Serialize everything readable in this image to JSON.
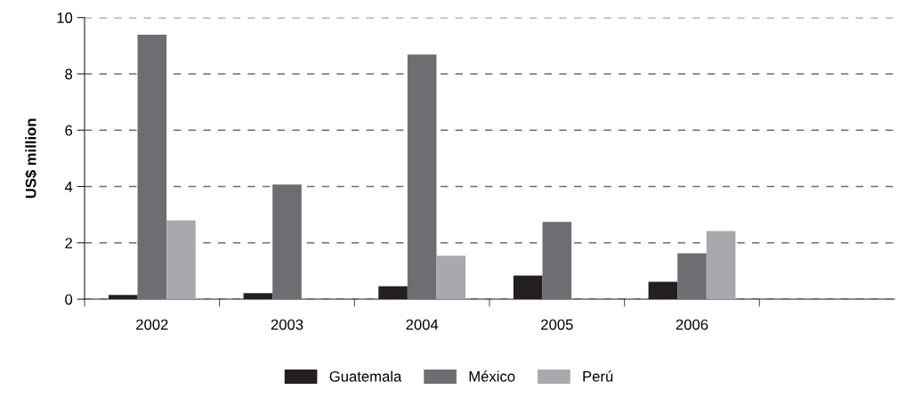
{
  "chart_data": {
    "type": "bar",
    "ylabel": "US$ million",
    "categories": [
      "2002",
      "2003",
      "2004",
      "2005",
      "2006",
      null
    ],
    "series": [
      {
        "name": "Guatemala",
        "color": "#231f20",
        "values": [
          0.15,
          0.21,
          0.46,
          0.84,
          0.62,
          null
        ]
      },
      {
        "name": "México",
        "color": "#6d6e71",
        "values": [
          9.39,
          4.07,
          8.69,
          2.74,
          1.63,
          null
        ]
      },
      {
        "name": "Perú",
        "color": "#a7a9ac",
        "values": [
          2.8,
          null,
          1.54,
          null,
          2.42,
          null
        ]
      }
    ],
    "ylim": [
      0,
      10
    ],
    "yticks": [
      0,
      2,
      4,
      6,
      8,
      10
    ],
    "grid": "y",
    "legend": "bottom"
  }
}
